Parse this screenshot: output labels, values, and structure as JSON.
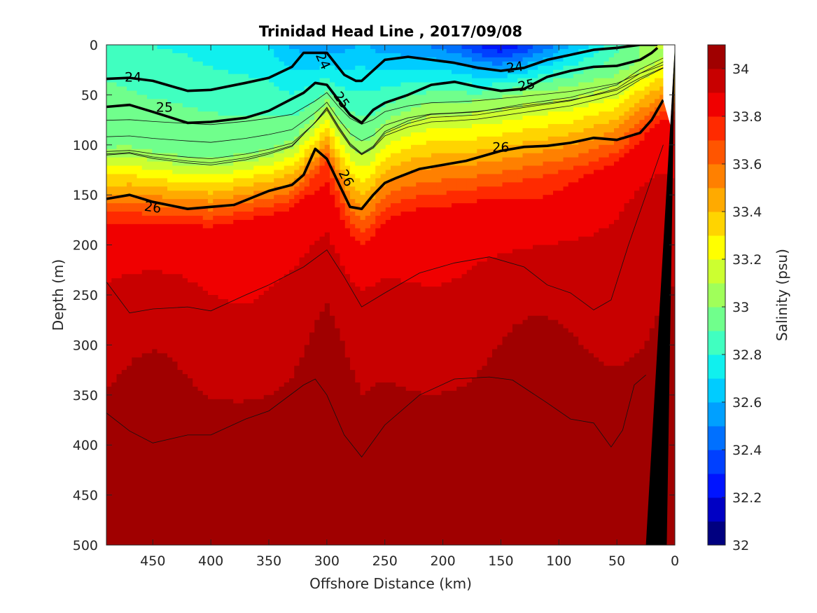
{
  "chart_data": {
    "type": "contour",
    "title": "Trinidad Head Line , 2017/09/08",
    "xlabel": "Offshore Distance (km)",
    "ylabel": "Depth (m)",
    "colorbar_label": "Salinity (psu)",
    "xlim": [
      490,
      0
    ],
    "ylim": [
      0,
      500
    ],
    "x_reversed": true,
    "y_reversed": true,
    "x_ticks": [
      450,
      400,
      350,
      300,
      250,
      200,
      150,
      100,
      50,
      0
    ],
    "y_ticks": [
      0,
      50,
      100,
      150,
      200,
      250,
      300,
      350,
      400,
      450,
      500
    ],
    "colorbar": {
      "min": 32.0,
      "max": 34.1,
      "step": 0.1,
      "tick_values": [
        32,
        32.2,
        32.4,
        32.6,
        32.8,
        33,
        33.2,
        33.4,
        33.6,
        33.8,
        34
      ],
      "tick_labels": [
        "32",
        "32.2",
        "32.4",
        "32.6",
        "32.8",
        "33",
        "33.2",
        "33.4",
        "33.6",
        "33.8",
        "34"
      ],
      "colors": [
        "#000080",
        "#0000c4",
        "#0014ff",
        "#0040ff",
        "#0070ff",
        "#00a0ff",
        "#00ccff",
        "#10f0ee",
        "#40ffc0",
        "#70ff8c",
        "#a0ff5a",
        "#ccff30",
        "#ffff00",
        "#ffd400",
        "#ffaa00",
        "#ff8000",
        "#ff5500",
        "#ff2a00",
        "#f00000",
        "#c80000",
        "#a00000"
      ]
    },
    "salinity_profile": {
      "x_km": [
        490,
        470,
        450,
        420,
        400,
        370,
        350,
        330,
        310,
        300,
        290,
        280,
        270,
        260,
        250,
        230,
        210,
        190,
        170,
        150,
        130,
        110,
        90,
        70,
        50,
        30,
        10
      ],
      "depth_of_33": [
        103,
        101,
        107,
        112,
        114,
        109,
        103,
        95,
        70,
        55,
        72,
        88,
        98,
        91,
        76,
        65,
        58,
        57,
        56,
        52,
        48,
        45,
        42,
        36,
        30,
        15,
        5
      ],
      "depth_of_33_8": [
        178,
        178,
        178,
        180,
        182,
        175,
        170,
        164,
        140,
        125,
        160,
        188,
        200,
        190,
        176,
        166,
        162,
        160,
        156,
        152,
        148,
        142,
        136,
        128,
        118,
        96,
        74
      ],
      "surface_salinity": [
        32.85,
        32.82,
        32.8,
        32.78,
        32.75,
        32.72,
        32.7,
        32.58,
        32.55,
        32.52,
        32.54,
        32.58,
        32.62,
        32.58,
        32.55,
        32.52,
        32.48,
        32.42,
        32.28,
        32.2,
        32.3,
        32.45,
        32.6,
        32.72,
        32.85,
        33.0,
        33.2
      ]
    },
    "density_contours": [
      {
        "label": "24",
        "x_km": [
          490,
          470,
          450,
          420,
          400,
          370,
          350,
          330,
          320,
          300,
          285,
          275,
          270,
          250,
          230,
          210,
          190,
          170,
          150,
          130,
          110,
          90,
          70,
          50,
          30,
          20,
          15
        ],
        "depth": [
          34,
          33,
          36,
          46,
          45,
          38,
          33,
          22,
          8,
          8,
          30,
          36,
          36,
          15,
          12,
          15,
          18,
          23,
          26,
          23,
          15,
          10,
          5,
          3,
          0,
          0,
          0
        ]
      },
      {
        "label": "25",
        "x_km": [
          490,
          470,
          450,
          420,
          400,
          370,
          350,
          320,
          310,
          300,
          290,
          280,
          270,
          260,
          250,
          230,
          210,
          190,
          170,
          150,
          130,
          110,
          90,
          70,
          50,
          30,
          20,
          15
        ],
        "depth": [
          62,
          60,
          67,
          78,
          77,
          73,
          66,
          48,
          38,
          40,
          55,
          70,
          78,
          65,
          58,
          50,
          40,
          37,
          42,
          46,
          44,
          32,
          26,
          22,
          21,
          15,
          8,
          3
        ]
      },
      {
        "label": "26",
        "x_km": [
          490,
          470,
          450,
          420,
          400,
          380,
          350,
          330,
          320,
          310,
          300,
          290,
          280,
          270,
          260,
          250,
          240,
          220,
          200,
          180,
          150,
          130,
          110,
          90,
          70,
          50,
          30,
          20,
          10
        ],
        "depth": [
          154,
          150,
          157,
          164,
          162,
          160,
          146,
          140,
          130,
          104,
          114,
          138,
          162,
          164,
          150,
          138,
          133,
          124,
          120,
          116,
          106,
          102,
          101,
          98,
          93,
          95,
          88,
          75,
          55
        ]
      }
    ],
    "contour_labels": [
      {
        "text": "24",
        "x_km": 467,
        "depth": 32,
        "angle": 0
      },
      {
        "text": "24",
        "x_km": 303,
        "depth": 16,
        "angle": 65
      },
      {
        "text": "24",
        "x_km": 138,
        "depth": 22,
        "angle": -8
      },
      {
        "text": "25",
        "x_km": 440,
        "depth": 62,
        "angle": 0
      },
      {
        "text": "25",
        "x_km": 287,
        "depth": 55,
        "angle": 55
      },
      {
        "text": "25",
        "x_km": 128,
        "depth": 40,
        "angle": -12
      },
      {
        "text": "26",
        "x_km": 450,
        "depth": 162,
        "angle": 8
      },
      {
        "text": "26",
        "x_km": 283,
        "depth": 133,
        "angle": 62
      },
      {
        "text": "26",
        "x_km": 150,
        "depth": 102,
        "angle": 0
      }
    ],
    "shelf_polygon": {
      "x_km": [
        0,
        25,
        18,
        7
      ],
      "depth": [
        0,
        500,
        500,
        500
      ]
    },
    "grid": false,
    "legend": "colorbar-right"
  }
}
